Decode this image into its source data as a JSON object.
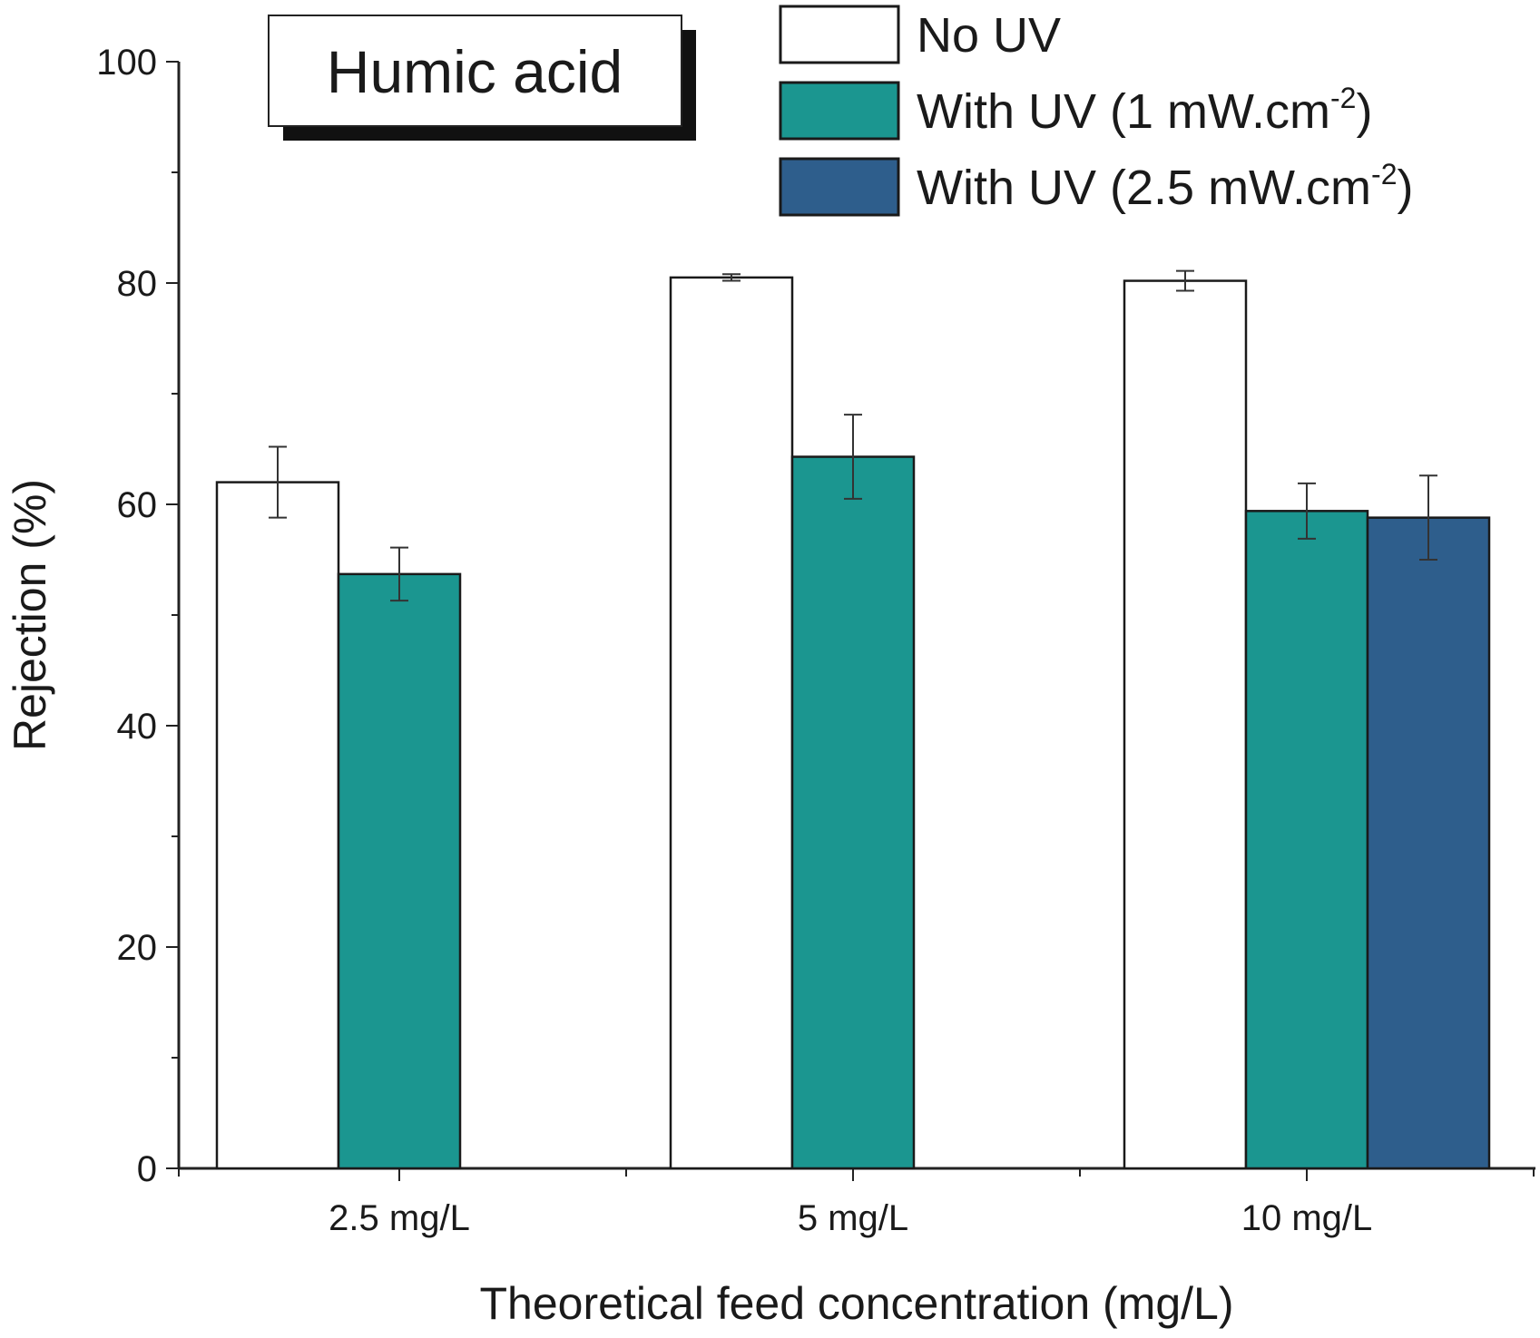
{
  "chart_data": {
    "type": "bar",
    "title": "Humic acid",
    "xlabel": "Theoretical feed concentration (mg/L)",
    "ylabel": "Rejection (%)",
    "ylim": [
      0,
      100
    ],
    "yticks": [
      "0",
      "20",
      "40",
      "60",
      "80",
      "100"
    ],
    "categories": [
      "2.5 mg/L",
      "5 mg/L",
      "10 mg/L"
    ],
    "series": [
      {
        "name": "No UV",
        "legend_parts": [
          "No UV",
          "",
          ""
        ],
        "color": "#ffffff",
        "values": [
          62.0,
          80.5,
          80.2
        ],
        "errors": [
          3.2,
          0.3,
          0.9
        ]
      },
      {
        "name": "With UV (1 mW.cm-2)",
        "legend_parts": [
          "With UV (1 mW.cm",
          "-2",
          ")"
        ],
        "color": "#1b9690",
        "values": [
          53.7,
          64.3,
          59.4
        ],
        "errors": [
          2.4,
          3.8,
          2.5
        ]
      },
      {
        "name": "With UV (2.5 mW.cm-2)",
        "legend_parts": [
          "With UV (2.5 mW.cm",
          "-2",
          ")"
        ],
        "color": "#2e5e8c",
        "values": [
          null,
          null,
          58.8
        ],
        "errors": [
          null,
          null,
          3.8
        ]
      }
    ],
    "grid": false,
    "legend_position": "top-right"
  }
}
